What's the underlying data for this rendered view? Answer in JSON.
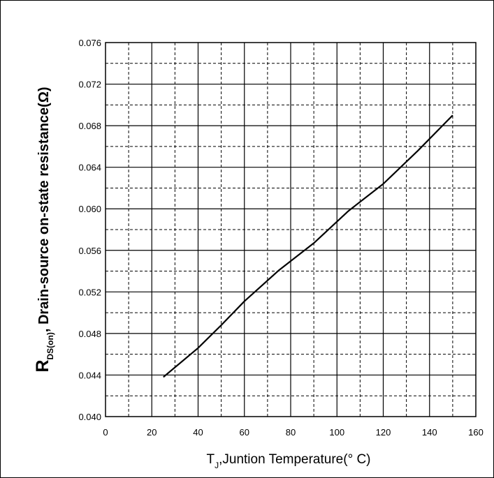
{
  "chart_data": {
    "type": "line",
    "xlabel": {
      "main": "T",
      "sub": "J",
      "rest": ",Juntion Temperature(° C)"
    },
    "ylabel": {
      "main": "R",
      "sub": "DS(on)",
      "rest": ", Drain-source on-state resistance(Ω)"
    },
    "xlim": [
      0,
      160
    ],
    "ylim": [
      0.04,
      0.076
    ],
    "xticks": [
      "0",
      "20",
      "40",
      "60",
      "80",
      "100",
      "120",
      "140",
      "160"
    ],
    "yticks": [
      "0.040",
      "0.044",
      "0.048",
      "0.052",
      "0.056",
      "0.060",
      "0.064",
      "0.068",
      "0.072",
      "0.076"
    ],
    "grid": true,
    "series": [
      {
        "x": [
          25,
          40,
          50,
          60,
          75,
          90,
          105,
          120,
          135,
          150
        ],
        "y": [
          0.0438,
          0.0466,
          0.0488,
          0.0511,
          0.0541,
          0.0567,
          0.0598,
          0.0624,
          0.0656,
          0.069
        ]
      }
    ]
  }
}
